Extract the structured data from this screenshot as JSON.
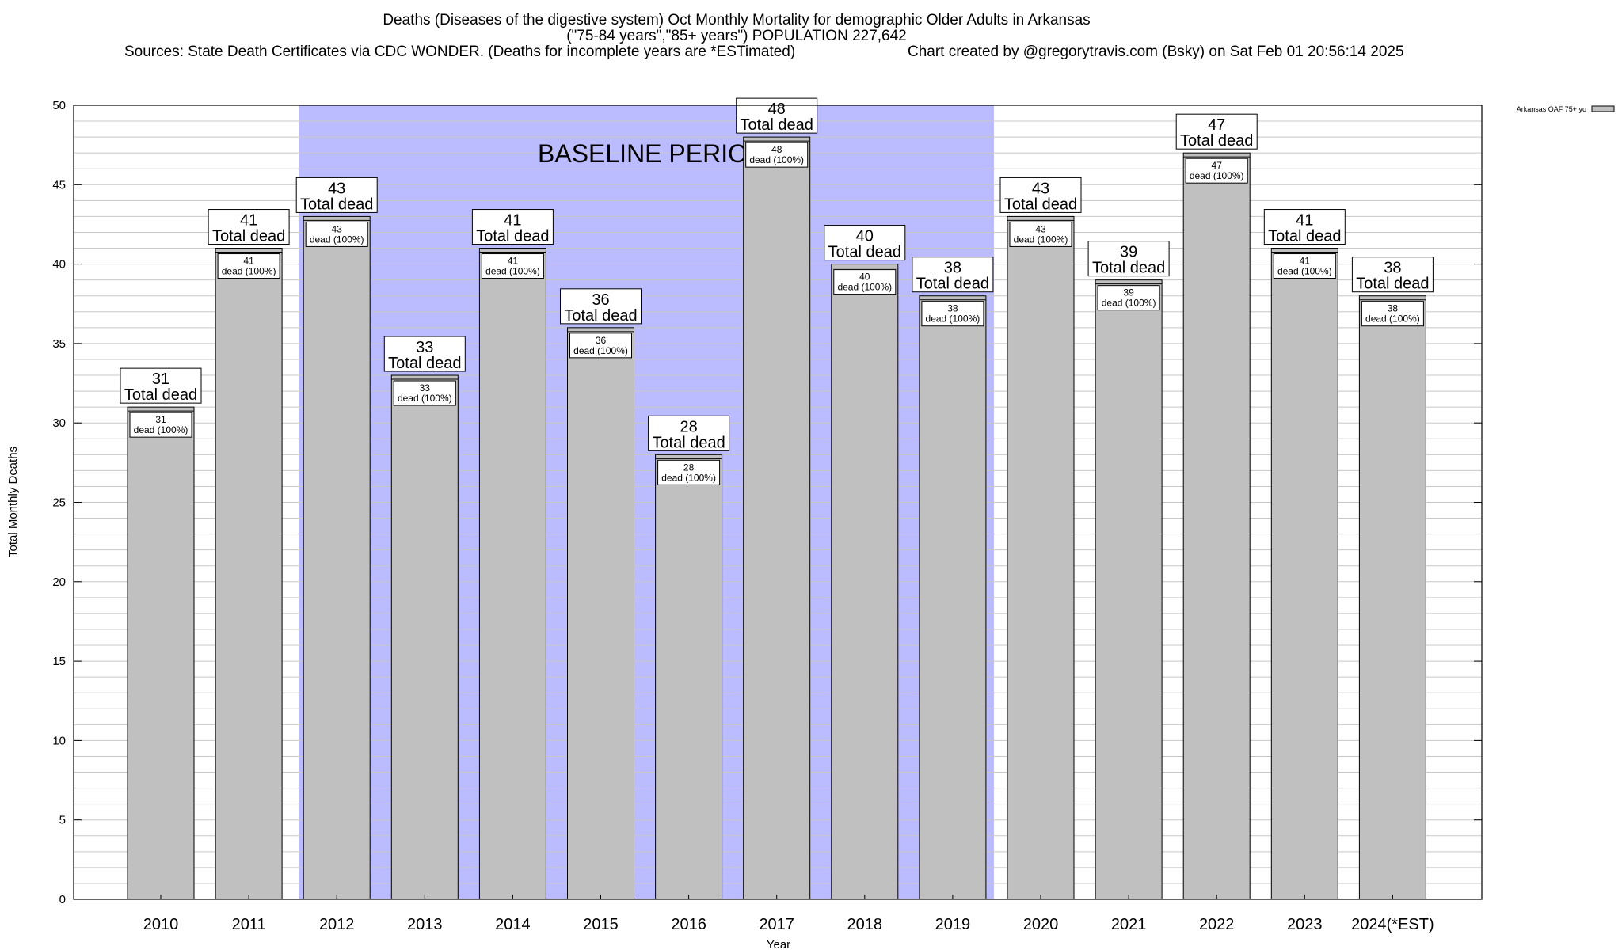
{
  "header": {
    "line1": "Deaths (Diseases of the digestive system) Oct Monthly Mortality for demographic Older Adults in Arkansas",
    "line2": "(\"75-84 years\",\"85+ years\") POPULATION 227,642",
    "line3": "Sources: State Death Certificates via CDC WONDER. (Deaths for incomplete years are *ESTimated)",
    "credit": "Chart created by @gregorytravis.com (Bsky) on Sat Feb 01 20:56:14 2025"
  },
  "chart_data": {
    "type": "bar",
    "categories": [
      "2010",
      "2011",
      "2012",
      "2013",
      "2014",
      "2015",
      "2016",
      "2017",
      "2018",
      "2019",
      "2020",
      "2021",
      "2022",
      "2023",
      "2024(*EST)"
    ],
    "series": [
      {
        "name": "Arkansas OAF 75+ yo",
        "values": [
          31,
          41,
          43,
          33,
          41,
          36,
          28,
          48,
          40,
          38,
          43,
          39,
          47,
          41,
          38
        ],
        "color": "#c0c0c0"
      }
    ],
    "bar_label_total": "Total dead",
    "bar_label_inner": "dead (100%)",
    "xlabel": "Year",
    "ylabel": "Total Monthly Deaths",
    "ylim": [
      0,
      50
    ],
    "yticks": [
      0,
      5,
      10,
      15,
      20,
      25,
      30,
      35,
      40,
      45,
      50
    ],
    "grid": true,
    "baseline": {
      "label": "BASELINE PERIOD",
      "from": "2012",
      "to": "2019",
      "color": "#bbbbff"
    },
    "legend": {
      "position": "top-right",
      "label": "Arkansas OAF 75+ yo"
    }
  }
}
